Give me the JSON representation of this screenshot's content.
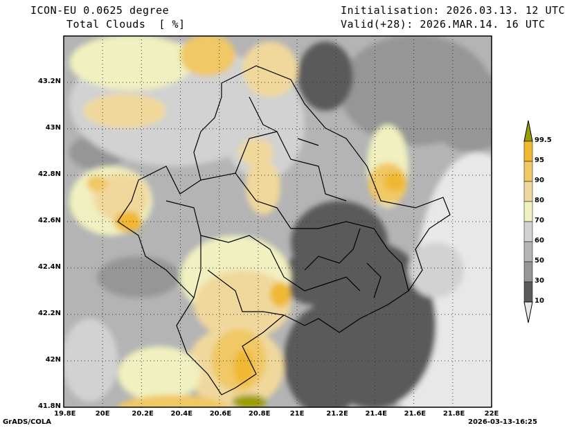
{
  "header": {
    "model": "ICON-EU 0.0625 degree",
    "variable": "Total Clouds  [ %]",
    "init": "Initialisation: 2026.03.13. 12 UTC",
    "valid": "Valid(+28): 2026.MAR.14. 16 UTC"
  },
  "axes": {
    "lon_labels": [
      "19.8E",
      "20E",
      "20.2E",
      "20.4E",
      "20.6E",
      "20.8E",
      "21E",
      "21.2E",
      "21.4E",
      "21.6E",
      "21.8E",
      "22E"
    ],
    "lat_labels": [
      "43.2N",
      "43N",
      "42.8N",
      "42.6N",
      "42.4N",
      "42.2N",
      "42N",
      "41.8N"
    ],
    "lon_range": [
      19.8,
      22.0
    ],
    "lat_range": [
      41.8,
      43.4
    ]
  },
  "colorbar": {
    "labels": [
      "99.5",
      "95",
      "90",
      "80",
      "70",
      "60",
      "50",
      "30",
      "10"
    ],
    "colors": {
      "above_99_5": "#9c9c00",
      "95_99_5": "#f0b830",
      "90_95": "#f0c865",
      "80_90": "#f0d89c",
      "70_80": "#f0f0c0",
      "60_70": "#d2d2d2",
      "50_60": "#b4b4b4",
      "30_50": "#969696",
      "10_30": "#5a5a5a",
      "below_10": "#e8e8e8"
    }
  },
  "footer": {
    "left": "GrADS/COLA",
    "right": "2026-03-13-16:25"
  }
}
